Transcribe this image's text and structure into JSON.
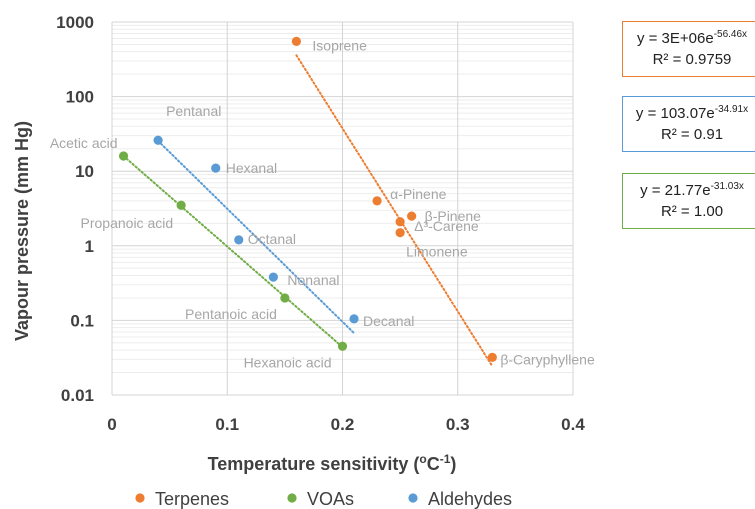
{
  "chart_data": {
    "type": "scatter",
    "xlabel": "Temperature sensitivity (",
    "xlabel_unit": "o",
    "xlabel_tail": "C",
    "xlabel_exp": "-1",
    "xlabel_close": ")",
    "ylabel": "Vapour pressure (mm Hg)",
    "xlim": [
      0,
      0.4
    ],
    "ylim": [
      0.01,
      1000
    ],
    "y_scale": "log",
    "x_ticks": [
      "0",
      "0.1",
      "0.2",
      "0.3",
      "0.4"
    ],
    "y_ticks": [
      "0.01",
      "0.1",
      "1",
      "10",
      "100",
      "1000"
    ],
    "grid": true,
    "legend_position": "bottom",
    "series": [
      {
        "name": "Terpenes",
        "color": "#ED7D31",
        "points": [
          {
            "label": "Isoprene",
            "x": 0.16,
            "y": 550
          },
          {
            "label": "α-Pinene",
            "x": 0.23,
            "y": 4.0
          },
          {
            "label": "β-Pinene",
            "x": 0.26,
            "y": 2.5
          },
          {
            "label": "Δ³-Carene",
            "x": 0.25,
            "y": 2.1
          },
          {
            "label": "Limonene",
            "x": 0.25,
            "y": 1.5
          },
          {
            "label": "β-Caryphyllene",
            "x": 0.33,
            "y": 0.032
          }
        ],
        "trend": {
          "x_start": 0.16,
          "x_end": 0.33,
          "a": 3000000,
          "b": -56.46
        },
        "equation": {
          "prefix": "y = 3E+06e",
          "exp": "-56.46x",
          "r2": "R² = 0.9759"
        }
      },
      {
        "name": "VOAs",
        "color": "#70AD47",
        "points": [
          {
            "label": "Acetic acid",
            "x": 0.01,
            "y": 16
          },
          {
            "label": "Propanoic acid",
            "x": 0.06,
            "y": 3.5
          },
          {
            "label": "Pentanoic acid",
            "x": 0.15,
            "y": 0.2
          },
          {
            "label": "Hexanoic acid",
            "x": 0.2,
            "y": 0.045
          }
        ],
        "trend": {
          "x_start": 0.01,
          "x_end": 0.2,
          "a": 21.77,
          "b": -31.03
        },
        "equation": {
          "prefix": "y = 21.77e",
          "exp": "-31.03x",
          "r2": "R² = 1.00"
        }
      },
      {
        "name": "Aldehydes",
        "color": "#5B9BD5",
        "points": [
          {
            "label": "Pentanal",
            "x": 0.04,
            "y": 26
          },
          {
            "label": "Hexanal",
            "x": 0.09,
            "y": 11
          },
          {
            "label": "Octanal",
            "x": 0.11,
            "y": 1.2
          },
          {
            "label": "Nonanal",
            "x": 0.14,
            "y": 0.38
          },
          {
            "label": "Decanal",
            "x": 0.21,
            "y": 0.105
          }
        ],
        "trend": {
          "x_start": 0.04,
          "x_end": 0.21,
          "a": 103.07,
          "b": -34.91
        },
        "equation": {
          "prefix": "y = 103.07e",
          "exp": "-34.91x",
          "r2": "R² = 0.91"
        }
      }
    ]
  }
}
